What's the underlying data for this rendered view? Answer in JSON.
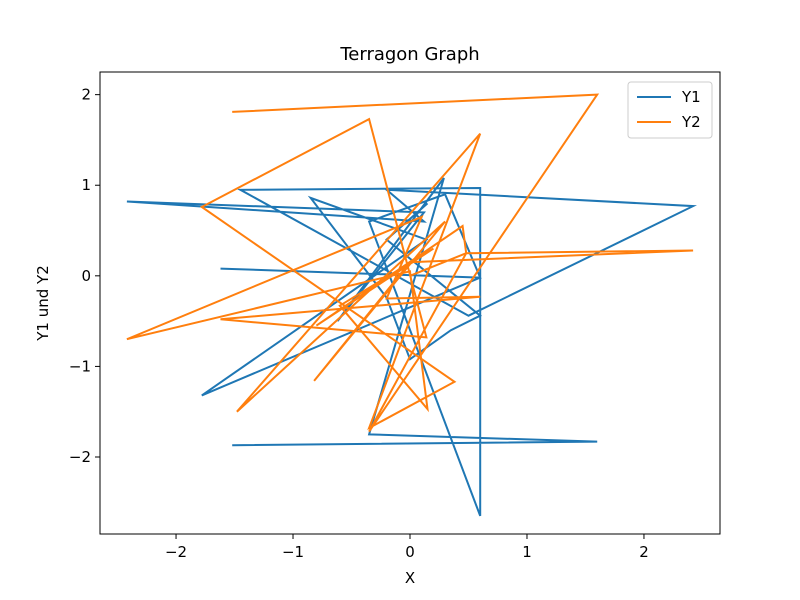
{
  "chart_data": {
    "type": "line",
    "title": "Terragon Graph",
    "xlabel": "X",
    "ylabel": "Y1 und Y2",
    "xlim": [
      -2.65,
      2.65
    ],
    "ylim": [
      -2.85,
      2.25
    ],
    "xticks": [
      -2,
      -1,
      0,
      1,
      2
    ],
    "yticks": [
      -2,
      -1,
      0,
      1,
      2
    ],
    "xtick_labels": [
      "−2",
      "−1",
      "0",
      "1",
      "2"
    ],
    "ytick_labels": [
      "−2",
      "−1",
      "0",
      "1",
      "2"
    ],
    "grid": false,
    "legend_position": "upper-right",
    "series": [
      {
        "name": "Y1",
        "color": "#1f77b4",
        "points": [
          [
            -1.52,
            -1.87
          ],
          [
            1.6,
            -1.83
          ],
          [
            -0.35,
            -1.75
          ],
          [
            0.29,
            1.08
          ],
          [
            -0.62,
            -0.5
          ],
          [
            0.12,
            0.7
          ],
          [
            -2.42,
            0.82
          ],
          [
            0.12,
            0.6
          ],
          [
            -0.2,
            0.95
          ],
          [
            2.42,
            0.77
          ],
          [
            0.5,
            -0.44
          ],
          [
            -1.45,
            0.95
          ],
          [
            0.6,
            0.97
          ],
          [
            0.6,
            -2.65
          ],
          [
            -0.35,
            0.6
          ],
          [
            0.3,
            0.9
          ],
          [
            0.6,
            -0.02
          ],
          [
            -1.62,
            0.08
          ],
          [
            0.6,
            -0.02
          ],
          [
            -1.78,
            -1.32
          ],
          [
            0.14,
            0.4
          ],
          [
            -0.85,
            0.86
          ],
          [
            -0.2,
            -0.24
          ],
          [
            0.0,
            -0.92
          ],
          [
            0.35,
            -0.6
          ],
          [
            0.6,
            -0.44
          ],
          [
            -0.2,
            0.4
          ],
          [
            0.15,
            0.8
          ]
        ]
      },
      {
        "name": "Y2",
        "color": "#ff7f0e",
        "points": [
          [
            -1.52,
            1.81
          ],
          [
            1.6,
            2.0
          ],
          [
            -0.35,
            -1.72
          ],
          [
            0.48,
            0.25
          ],
          [
            2.42,
            0.28
          ],
          [
            0.0,
            0.15
          ],
          [
            -0.82,
            -1.16
          ],
          [
            0.3,
            0.6
          ],
          [
            -1.48,
            -1.5
          ],
          [
            0.6,
            1.57
          ],
          [
            -0.35,
            -1.68
          ],
          [
            0.38,
            -1.17
          ],
          [
            -1.78,
            0.76
          ],
          [
            -0.35,
            1.73
          ],
          [
            0.14,
            -0.68
          ],
          [
            -1.62,
            -0.48
          ],
          [
            0.6,
            -0.23
          ],
          [
            -0.2,
            -0.25
          ],
          [
            0.1,
            0.65
          ],
          [
            -2.42,
            -0.7
          ],
          [
            0.0,
            0.05
          ],
          [
            0.15,
            -1.47
          ],
          [
            -0.6,
            -0.33
          ],
          [
            0.2,
            0.3
          ],
          [
            -0.8,
            -0.55
          ],
          [
            0.45,
            0.55
          ],
          [
            0.48,
            0.25
          ],
          [
            0.0,
            0.0
          ]
        ]
      }
    ]
  }
}
